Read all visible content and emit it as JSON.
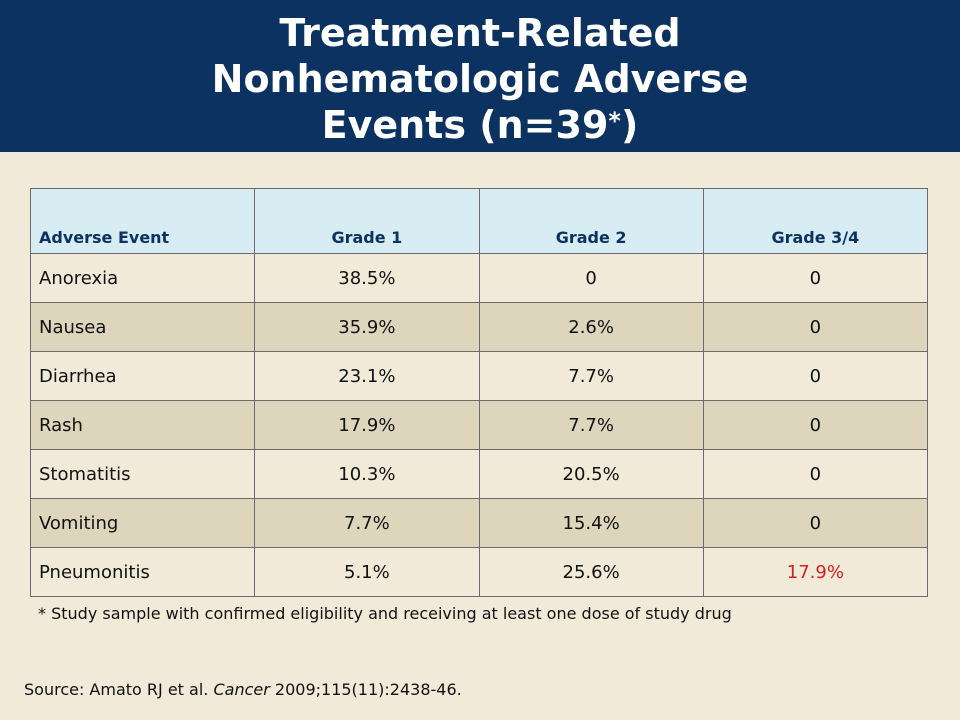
{
  "title": {
    "line1": "Treatment-Related",
    "line2": "Nonhematologic Adverse",
    "line3": "Events (n=39",
    "asterisk": "*",
    "close": ")"
  },
  "table": {
    "headers": [
      "Adverse Event",
      "Grade 1",
      "Grade 2",
      "Grade 3/4"
    ],
    "rows": [
      [
        "Anorexia",
        "38.5%",
        "0",
        "0"
      ],
      [
        "Nausea",
        "35.9%",
        "2.6%",
        "0"
      ],
      [
        "Diarrhea",
        "23.1%",
        "7.7%",
        "0"
      ],
      [
        "Rash",
        "17.9%",
        "7.7%",
        "0"
      ],
      [
        "Stomatitis",
        "10.3%",
        "20.5%",
        "0"
      ],
      [
        "Vomiting",
        "7.7%",
        "15.4%",
        "0"
      ],
      [
        "Pneumonitis",
        "5.1%",
        "25.6%",
        "17.9%"
      ]
    ],
    "highlight_color": "#d51f1f"
  },
  "footnote": "* Study sample with confirmed eligibility and receiving at least one dose of study drug",
  "source": {
    "prefix": "Source: Amato RJ et al. ",
    "journal": "Cancer",
    "suffix": " 2009;115(11):2438-46."
  }
}
